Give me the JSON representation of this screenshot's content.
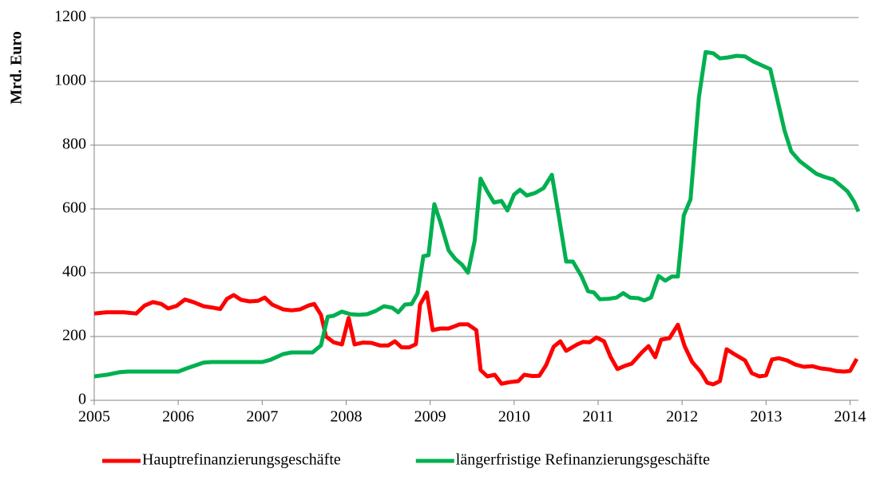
{
  "chart_data": {
    "type": "line",
    "ylabel": "Mrd. Euro",
    "xlim": [
      2005,
      2014.1
    ],
    "xticks": [
      2005,
      2006,
      2007,
      2008,
      2009,
      2010,
      2011,
      2012,
      2013,
      2014
    ],
    "ylim": [
      0,
      1200
    ],
    "yticks": [
      0,
      200,
      400,
      600,
      800,
      1000,
      1200
    ],
    "grid": true,
    "legend": "bottom",
    "series": [
      {
        "name": "Hauptrefinanzierungsgeschäfte",
        "color": "#ff0000",
        "x": [
          2005.0,
          2005.15,
          2005.35,
          2005.5,
          2005.6,
          2005.7,
          2005.8,
          2005.88,
          2005.98,
          2006.08,
          2006.18,
          2006.3,
          2006.4,
          2006.5,
          2006.58,
          2006.66,
          2006.75,
          2006.85,
          2006.95,
          2007.03,
          2007.12,
          2007.25,
          2007.35,
          2007.45,
          2007.55,
          2007.62,
          2007.7,
          2007.76,
          2007.85,
          2007.95,
          2008.03,
          2008.1,
          2008.2,
          2008.3,
          2008.4,
          2008.5,
          2008.58,
          2008.66,
          2008.75,
          2008.83,
          2008.88,
          2008.96,
          2009.03,
          2009.12,
          2009.22,
          2009.35,
          2009.45,
          2009.55,
          2009.6,
          2009.68,
          2009.77,
          2009.85,
          2009.95,
          2010.05,
          2010.12,
          2010.22,
          2010.3,
          2010.38,
          2010.47,
          2010.55,
          2010.62,
          2010.75,
          2010.82,
          2010.9,
          2010.98,
          2011.07,
          2011.15,
          2011.23,
          2011.32,
          2011.4,
          2011.52,
          2011.6,
          2011.68,
          2011.75,
          2011.85,
          2011.95,
          2012.03,
          2012.12,
          2012.22,
          2012.3,
          2012.37,
          2012.45,
          2012.53,
          2012.62,
          2012.75,
          2012.83,
          2012.92,
          2013.0,
          2013.07,
          2013.15,
          2013.25,
          2013.35,
          2013.45,
          2013.55,
          2013.65,
          2013.75,
          2013.83,
          2013.93,
          2014.0,
          2014.08
        ],
        "values": [
          272,
          276,
          276,
          272,
          297,
          308,
          302,
          288,
          296,
          316,
          308,
          295,
          291,
          286,
          318,
          330,
          315,
          310,
          312,
          322,
          300,
          285,
          282,
          285,
          297,
          302,
          268,
          200,
          182,
          175,
          258,
          175,
          181,
          180,
          172,
          172,
          185,
          166,
          166,
          176,
          300,
          338,
          220,
          225,
          225,
          238,
          238,
          220,
          95,
          75,
          80,
          52,
          57,
          60,
          80,
          76,
          77,
          110,
          168,
          185,
          155,
          175,
          183,
          182,
          197,
          185,
          135,
          98,
          108,
          115,
          150,
          170,
          135,
          190,
          195,
          237,
          170,
          120,
          90,
          55,
          50,
          60,
          160,
          145,
          125,
          85,
          75,
          78,
          128,
          132,
          125,
          112,
          105,
          107,
          100,
          97,
          92,
          90,
          92,
          130
        ]
      },
      {
        "name": "längerfristige Refinanzierungsgeschäfte",
        "color": "#00b050",
        "x": [
          2005.0,
          2005.15,
          2005.3,
          2005.4,
          2006.0,
          2006.1,
          2006.3,
          2006.4,
          2007.0,
          2007.1,
          2007.25,
          2007.35,
          2007.6,
          2007.7,
          2007.78,
          2007.85,
          2007.95,
          2008.05,
          2008.15,
          2008.25,
          2008.35,
          2008.45,
          2008.55,
          2008.62,
          2008.7,
          2008.78,
          2008.85,
          2008.92,
          2008.98,
          2009.05,
          2009.12,
          2009.22,
          2009.3,
          2009.38,
          2009.45,
          2009.53,
          2009.6,
          2009.68,
          2009.76,
          2009.85,
          2009.92,
          2010.0,
          2010.07,
          2010.15,
          2010.25,
          2010.35,
          2010.45,
          2010.53,
          2010.62,
          2010.7,
          2010.8,
          2010.88,
          2010.95,
          2011.02,
          2011.12,
          2011.22,
          2011.3,
          2011.38,
          2011.48,
          2011.55,
          2011.63,
          2011.72,
          2011.8,
          2011.88,
          2011.95,
          2012.02,
          2012.1,
          2012.2,
          2012.28,
          2012.37,
          2012.45,
          2012.55,
          2012.65,
          2012.75,
          2012.85,
          2012.95,
          2013.05,
          2013.12,
          2013.22,
          2013.3,
          2013.4,
          2013.5,
          2013.6,
          2013.7,
          2013.8,
          2013.88,
          2013.97,
          2014.05,
          2014.1
        ],
        "values": [
          75,
          80,
          88,
          90,
          90,
          100,
          118,
          120,
          120,
          127,
          145,
          150,
          150,
          172,
          262,
          265,
          278,
          270,
          268,
          270,
          280,
          295,
          290,
          276,
          300,
          302,
          335,
          452,
          455,
          615,
          560,
          470,
          443,
          425,
          400,
          500,
          695,
          655,
          620,
          625,
          595,
          645,
          660,
          642,
          650,
          665,
          707,
          580,
          435,
          435,
          390,
          342,
          338,
          317,
          318,
          322,
          336,
          322,
          320,
          313,
          322,
          390,
          375,
          388,
          388,
          580,
          630,
          950,
          1092,
          1088,
          1072,
          1075,
          1080,
          1078,
          1062,
          1050,
          1038,
          960,
          845,
          780,
          750,
          730,
          710,
          700,
          692,
          675,
          655,
          622,
          592
        ]
      }
    ]
  }
}
